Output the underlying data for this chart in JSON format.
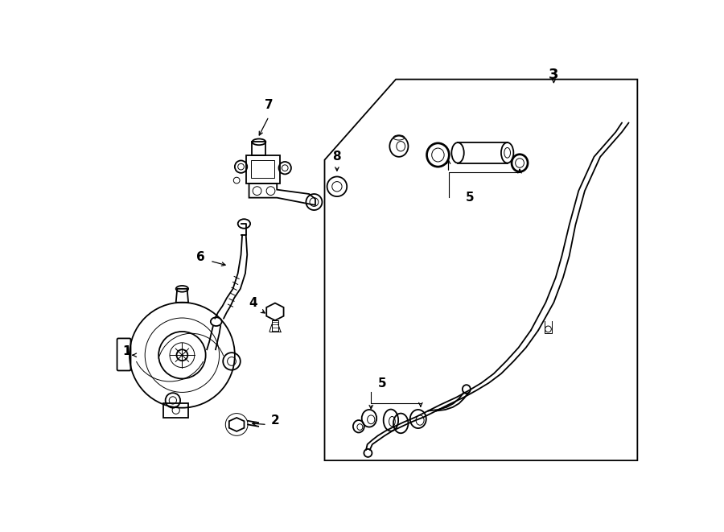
{
  "bg_color": "#ffffff",
  "line_color": "#000000",
  "lw": 1.3,
  "tlw": 0.7,
  "fig_width": 9.0,
  "fig_height": 6.61
}
